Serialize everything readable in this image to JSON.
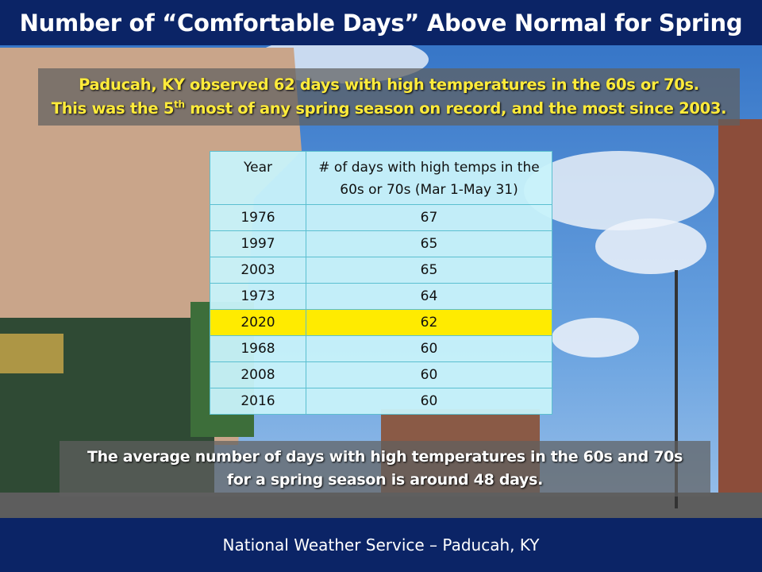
{
  "header": {
    "title": "Number of “Comfortable Days” Above Normal for Spring"
  },
  "callout": {
    "line1": "Paducah,  KY observed 62 days with high temperatures in the 60s or 70s.",
    "line2_parts": [
      "This was the 5",
      "th",
      " most of any spring season on record, and the most since 2003."
    ]
  },
  "table": {
    "columns": [
      "Year",
      "# of days with high temps in the 60s or 70s (Mar 1-May 31)"
    ],
    "rows": [
      [
        1976,
        67
      ],
      [
        1997,
        65
      ],
      [
        2003,
        65
      ],
      [
        1973,
        64
      ],
      [
        2020,
        62
      ],
      [
        1968,
        60
      ],
      [
        2008,
        60
      ],
      [
        2016,
        60
      ]
    ],
    "highlight_row": 4
  },
  "note": {
    "lines": [
      "The average number of days with high temperatures in the 60s and 70s",
      "for a spring season is around 48 days."
    ]
  },
  "footer": {
    "text": "National Weather Service – Paducah, KY"
  }
}
